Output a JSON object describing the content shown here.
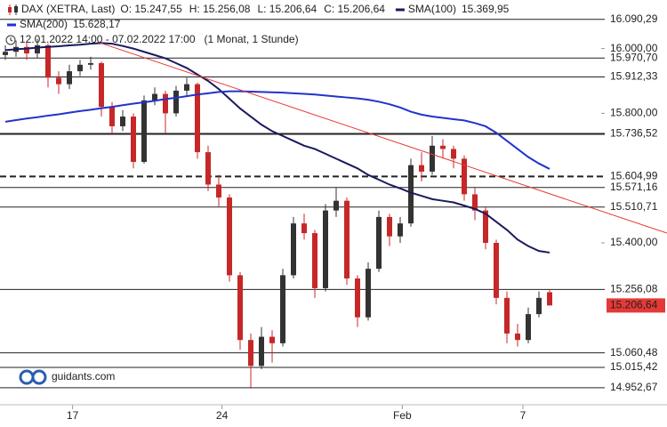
{
  "chart_data": {
    "type": "candlestick",
    "legend": [
      {
        "name": "DAX (XETRA, Last)",
        "color": "#c62828",
        "texts": [
          "O: 15.247,55",
          "H: 15.256,08",
          "L: 15.206,64",
          "C: 15.206,64"
        ]
      },
      {
        "name": "SMA(100)",
        "color": "#1a1a5e",
        "texts": [
          "15.369,95"
        ]
      },
      {
        "name": "SMA(200)",
        "color": "#2233cc",
        "texts": [
          "15.628,17"
        ]
      }
    ],
    "period": "12.01.2022 14:00 - 07.02.2022 17:00",
    "resolution": "(1 Monat, 1 Stunde)",
    "watermark": "guidants.com",
    "up_color": "#333333",
    "down_color": "#c62828",
    "ylim": [
      14900,
      16150
    ],
    "yticks": [
      {
        "value": 16000,
        "label": "16.000,00"
      },
      {
        "value": 15800,
        "label": "15.800,00"
      },
      {
        "value": 15400,
        "label": "15.400,00"
      }
    ],
    "xticks": [
      {
        "value": 6.3,
        "label": "17"
      },
      {
        "value": 20.3,
        "label": "24"
      },
      {
        "value": 37.2,
        "label": "Feb"
      },
      {
        "value": 48.5,
        "label": "7"
      }
    ],
    "levels": [
      {
        "value": 16090.29,
        "label": "16.090,29",
        "style": "solid"
      },
      {
        "value": 15970.7,
        "label": "15.970,70",
        "style": "solid"
      },
      {
        "value": 15912.33,
        "label": "15.912,33",
        "style": "solid"
      },
      {
        "value": 15736.52,
        "label": "15.736,52",
        "style": "thick"
      },
      {
        "value": 15604.99,
        "label": "15.604,99",
        "style": "dashed"
      },
      {
        "value": 15571.16,
        "label": "15.571,16",
        "style": "solid"
      },
      {
        "value": 15510.71,
        "label": "15.510,71",
        "style": "solid"
      },
      {
        "value": 15256.08,
        "label": "15.256,08",
        "style": "solid"
      },
      {
        "value": 15206.64,
        "label": "15.206,64",
        "style": "price"
      },
      {
        "value": 15060.48,
        "label": "15.060,48",
        "style": "solid"
      },
      {
        "value": 15015.42,
        "label": "15.015,42",
        "style": "solid"
      },
      {
        "value": 14952.67,
        "label": "14.952,67",
        "style": "solid"
      }
    ],
    "trendline": {
      "start": 16020,
      "end": 15430,
      "color": "#e53935"
    },
    "open": [
      15980,
      15990,
      16005,
      15985,
      16010,
      15910,
      15890,
      15930,
      15950,
      15955,
      15820,
      15760,
      15790,
      15650,
      15840,
      15860,
      15800,
      15870,
      15890,
      15680,
      15580,
      15540,
      15300,
      15100,
      15020,
      15110,
      15090,
      15300,
      15460,
      15430,
      15260,
      15500,
      15530,
      15290,
      15170,
      15320,
      15480,
      15420,
      15460,
      15640,
      15620,
      15700,
      15690,
      15660,
      15550,
      15500,
      15400,
      15230,
      15120,
      15100,
      15180,
      15247.55
    ],
    "high": [
      16010,
      16025,
      16020,
      16030,
      16015,
      15930,
      15950,
      15965,
      15975,
      15960,
      15835,
      15810,
      15800,
      15855,
      15880,
      15870,
      15885,
      15910,
      15895,
      15700,
      15610,
      15550,
      15310,
      15120,
      15140,
      15130,
      15320,
      15480,
      15490,
      15440,
      15520,
      15570,
      15540,
      15300,
      15340,
      15500,
      15490,
      15480,
      15660,
      15680,
      15730,
      15720,
      15700,
      15670,
      15570,
      15510,
      15410,
      15250,
      15150,
      15200,
      15250,
      15256.08
    ],
    "low": [
      15965,
      15975,
      15965,
      15970,
      15880,
      15860,
      15875,
      15915,
      15935,
      15790,
      15740,
      15745,
      15630,
      15645,
      15825,
      15740,
      15790,
      15855,
      15660,
      15560,
      15510,
      15280,
      15070,
      14950,
      15010,
      15030,
      15080,
      15290,
      15410,
      15230,
      15250,
      15480,
      15270,
      15140,
      15160,
      15310,
      15390,
      15400,
      15450,
      15590,
      15610,
      15660,
      15630,
      15530,
      15470,
      15380,
      15210,
      15090,
      15080,
      15090,
      15170,
      15206.64
    ],
    "close": [
      15990,
      16005,
      15985,
      16010,
      15910,
      15890,
      15930,
      15950,
      15955,
      15820,
      15760,
      15790,
      15650,
      15840,
      15860,
      15800,
      15870,
      15890,
      15680,
      15580,
      15540,
      15300,
      15100,
      15020,
      15110,
      15090,
      15300,
      15460,
      15430,
      15260,
      15500,
      15530,
      15290,
      15170,
      15320,
      15480,
      15420,
      15460,
      15640,
      15620,
      15700,
      15690,
      15660,
      15550,
      15500,
      15400,
      15230,
      15120,
      15100,
      15180,
      15230,
      15206.64
    ],
    "series": [
      {
        "name": "SMA(100)",
        "color": "#1a1a5e",
        "values": [
          15995,
          15998,
          16000,
          16003,
          16005,
          16007,
          16010,
          16012,
          16015,
          16017,
          16015,
          16008,
          16000,
          15990,
          15980,
          15970,
          15955,
          15940,
          15920,
          15900,
          15875,
          15845,
          15815,
          15790,
          15765,
          15745,
          15730,
          15715,
          15700,
          15690,
          15675,
          15660,
          15645,
          15630,
          15610,
          15595,
          15580,
          15568,
          15555,
          15545,
          15535,
          15530,
          15525,
          15515,
          15505,
          15490,
          15465,
          15440,
          15410,
          15390,
          15375,
          15369.95
        ]
      },
      {
        "name": "SMA(200)",
        "color": "#2233cc",
        "values": [
          15774,
          15779,
          15784,
          15788,
          15793,
          15797,
          15802,
          15807,
          15811,
          15816,
          15820,
          15825,
          15830,
          15834,
          15839,
          15844,
          15848,
          15853,
          15858,
          15862,
          15866,
          15868,
          15868,
          15867,
          15866,
          15865,
          15864,
          15862,
          15860,
          15858,
          15855,
          15852,
          15849,
          15846,
          15842,
          15836,
          15828,
          15818,
          15805,
          15796,
          15790,
          15786,
          15782,
          15778,
          15770,
          15760,
          15740,
          15715,
          15690,
          15665,
          15645,
          15628.17
        ]
      }
    ]
  }
}
